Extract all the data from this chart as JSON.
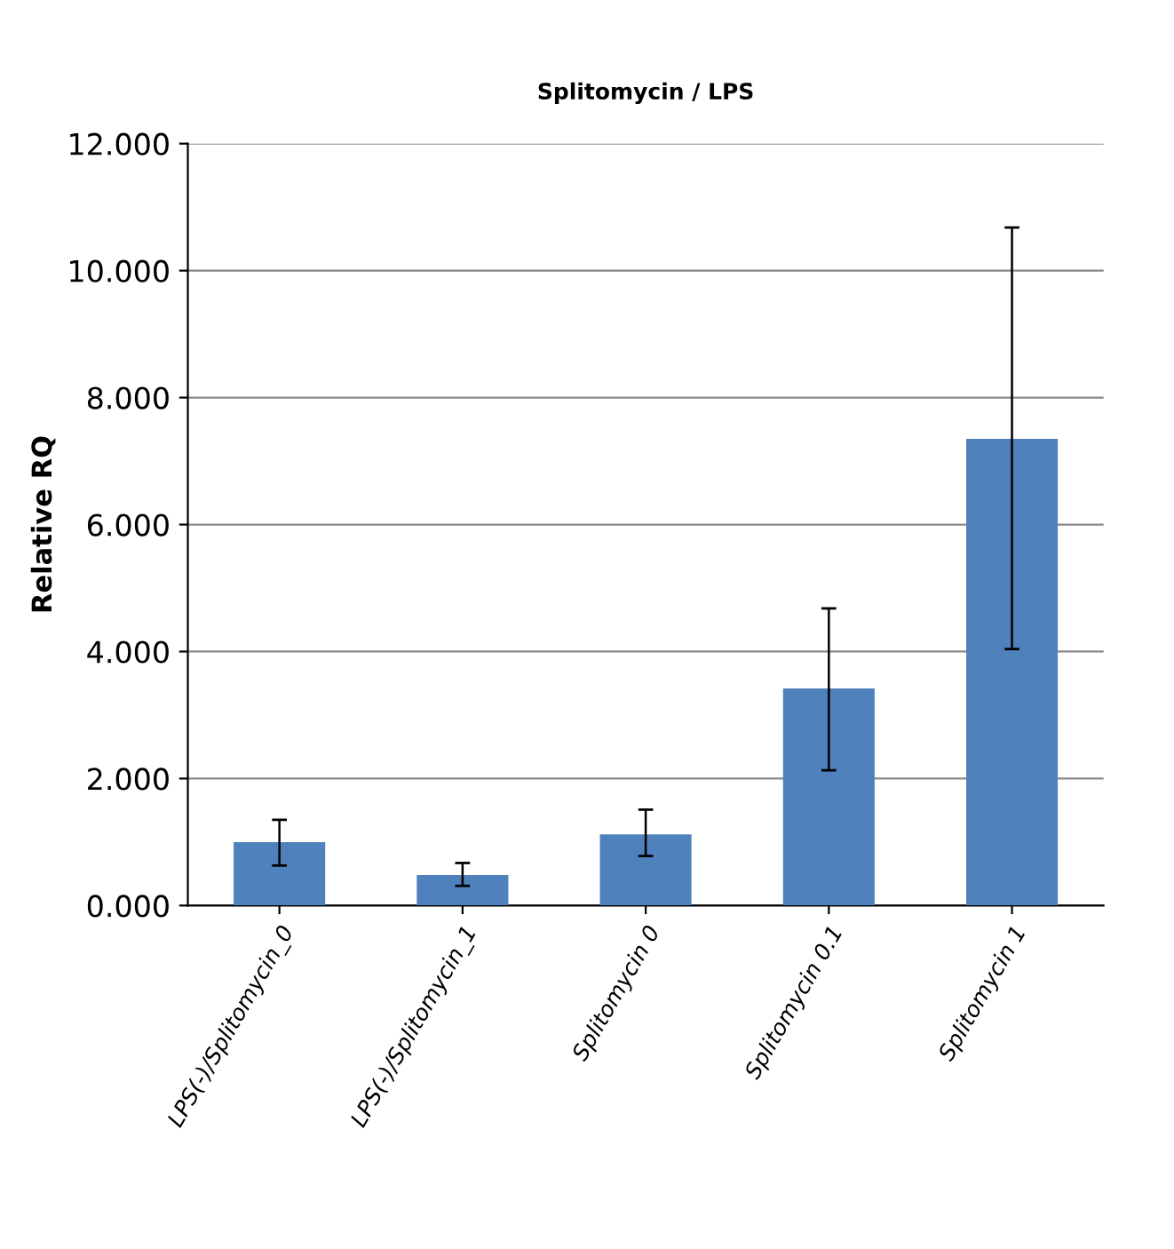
{
  "chart_data": {
    "type": "bar",
    "title": "Splitomycin / LPS",
    "ylabel": "Relative RQ",
    "categories": [
      "LPS(-)/Splitomycin_0",
      "LPS(-)/Splitomycin_1",
      "Splitomycin 0",
      "Splitomycin 0.1",
      "Splitomycin 1"
    ],
    "values": [
      1.0,
      0.48,
      1.12,
      3.42,
      7.35
    ],
    "errors": [
      [
        0.63,
        1.35
      ],
      [
        0.31,
        0.67
      ],
      [
        0.78,
        1.51
      ],
      [
        2.13,
        4.68
      ],
      [
        4.04,
        10.68
      ]
    ],
    "color": "#4f81bd",
    "ylim": [
      0,
      12
    ],
    "yticks": [
      {
        "value": 0,
        "label": "0.000"
      },
      {
        "value": 2,
        "label": "2.000"
      },
      {
        "value": 4,
        "label": "4.000"
      },
      {
        "value": 6,
        "label": "6.000"
      },
      {
        "value": 8,
        "label": "8.000"
      },
      {
        "value": 10,
        "label": "10.000"
      },
      {
        "value": 12,
        "label": "12.000"
      }
    ],
    "grid": "y",
    "legend": false
  }
}
